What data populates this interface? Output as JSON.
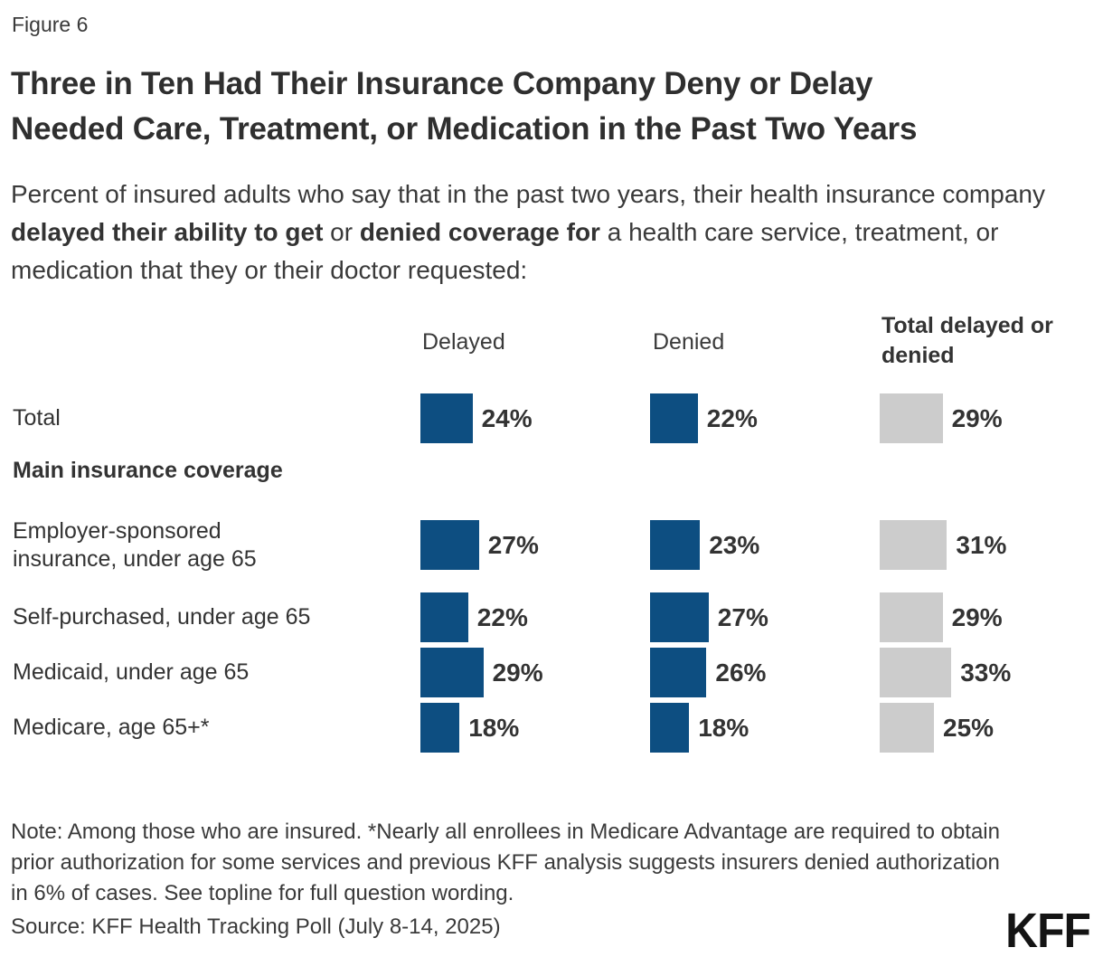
{
  "figure_label": "Figure 6",
  "title_lines": [
    "Three in Ten Had Their Insurance Company Deny or Delay",
    "Needed Care, Treatment, or Medication in the Past Two Years"
  ],
  "subtitle_parts": [
    {
      "text": "Percent of insured adults who say that in the past two years, their health insurance company ",
      "bold": false
    },
    {
      "text": "delayed their ability to get",
      "bold": true
    },
    {
      "text": " or ",
      "bold": false
    },
    {
      "text": "denied coverage for",
      "bold": true
    },
    {
      "text": " a health care service, treatment, or medication that they or their doctor requested:",
      "bold": false
    }
  ],
  "chart_data": {
    "type": "bar",
    "title": "Three in Ten Had Their Insurance Company Deny or Delay Needed Care, Treatment, or Medication in the Past Two Years",
    "categories": [
      "Total",
      "Employer-sponsored insurance, under age 65",
      "Self-purchased, under age 65",
      "Medicaid, under age 65",
      "Medicare, age 65+*"
    ],
    "category_label_lines": [
      [
        "Total"
      ],
      [
        "Employer-sponsored",
        "insurance, under age 65"
      ],
      [
        "Self-purchased, under age 65"
      ],
      [
        "Medicaid, under age 65"
      ],
      [
        "Medicare, age 65+*"
      ]
    ],
    "section_header": {
      "label": "Main insurance coverage",
      "after_category_index": 0
    },
    "series": [
      {
        "name": "Delayed",
        "color": "#0D4E81",
        "values": [
          24,
          27,
          22,
          29,
          18
        ]
      },
      {
        "name": "Denied",
        "color": "#0D4E81",
        "values": [
          22,
          23,
          27,
          26,
          18
        ]
      },
      {
        "name": "Total delayed or denied",
        "color": "#CCCCCC",
        "values": [
          29,
          31,
          29,
          33,
          25
        ]
      }
    ],
    "value_suffix": "%",
    "legend_position": "column-headers",
    "grid": false,
    "xlim": [
      0,
      100
    ]
  },
  "note": "Note: Among those who are insured. *Nearly all enrollees in Medicare Advantage are required to obtain prior authorization for some services and previous KFF analysis suggests insurers denied authorization in 6% of cases. See topline for full question wording.",
  "source": "Source: KFF Health Tracking Poll (July 8-14, 2025)",
  "logo_text": "KFF",
  "colors": {
    "bar_blue": "#0D4E81",
    "bar_gray": "#CCCCCC",
    "text": "#333333",
    "background": "#FFFFFF"
  }
}
